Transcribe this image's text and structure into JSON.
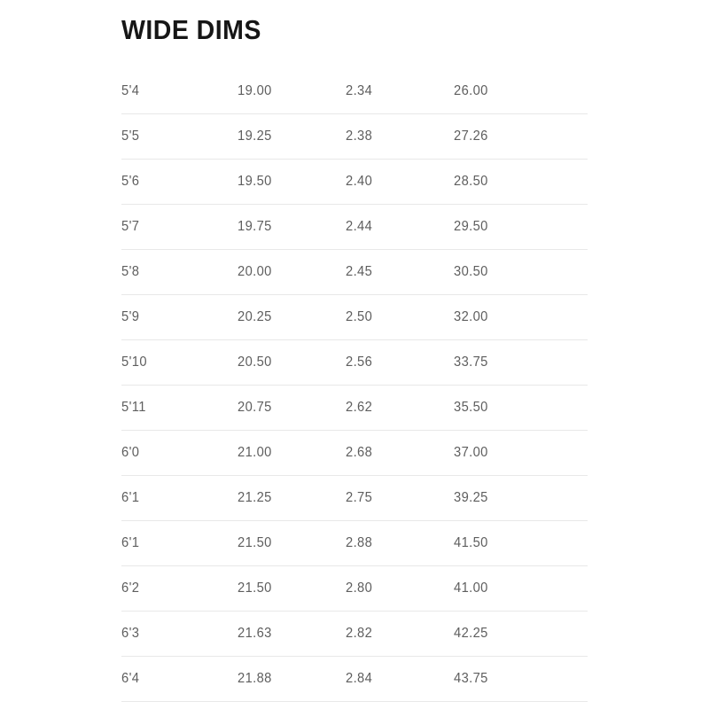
{
  "header": {
    "title": "WIDE DIMS"
  },
  "colors": {
    "background": "#ffffff",
    "title_text": "#161616",
    "row_text": "#5e5e5e",
    "divider": "#e8e8e8"
  },
  "chart_data": {
    "type": "table",
    "title": "WIDE DIMS",
    "has_header_row": false,
    "num_columns": 4,
    "rows": [
      [
        "5'4",
        "19.00",
        "2.34",
        "26.00"
      ],
      [
        "5'5",
        "19.25",
        "2.38",
        "27.26"
      ],
      [
        "5'6",
        "19.50",
        "2.40",
        "28.50"
      ],
      [
        "5'7",
        "19.75",
        "2.44",
        "29.50"
      ],
      [
        "5'8",
        "20.00",
        "2.45",
        "30.50"
      ],
      [
        "5'9",
        "20.25",
        "2.50",
        "32.00"
      ],
      [
        "5'10",
        "20.50",
        "2.56",
        "33.75"
      ],
      [
        "5'11",
        "20.75",
        "2.62",
        "35.50"
      ],
      [
        "6'0",
        "21.00",
        "2.68",
        "37.00"
      ],
      [
        "6'1",
        "21.25",
        "2.75",
        "39.25"
      ],
      [
        "6'1",
        "21.50",
        "2.88",
        "41.50"
      ],
      [
        "6'2",
        "21.50",
        "2.80",
        "41.00"
      ],
      [
        "6'3",
        "21.63",
        "2.82",
        "42.25"
      ],
      [
        "6'4",
        "21.88",
        "2.84",
        "43.75"
      ]
    ]
  }
}
